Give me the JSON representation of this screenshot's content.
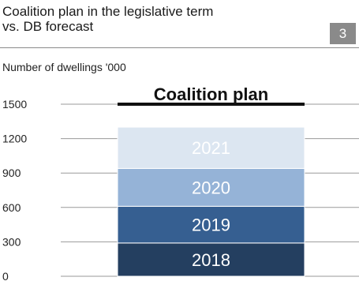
{
  "header": {
    "title_line1": "Coalition plan in the legislative term",
    "title_line2": "vs. DB forecast",
    "number": "3"
  },
  "unit_label": "Number of dwellings '000",
  "chart_data": {
    "type": "bar",
    "stacked": true,
    "categories": [
      "Coalition plan"
    ],
    "series": [
      {
        "name": "2018",
        "values": [
          290
        ],
        "color": "#243f60"
      },
      {
        "name": "2019",
        "values": [
          320
        ],
        "color": "#365f91"
      },
      {
        "name": "2020",
        "values": [
          330
        ],
        "color": "#95b3d7"
      },
      {
        "name": "2021",
        "values": [
          360
        ],
        "color": "#dce6f1"
      }
    ],
    "ylim": [
      0,
      1500
    ],
    "yticks": [
      0,
      300,
      600,
      900,
      1200,
      1500
    ],
    "ylabel": "Number of dwellings '000",
    "xlabel": "",
    "grid": true,
    "colors": {
      "grid": "#9a9a9a",
      "axis_text": "#222222",
      "segment_text": "#ffffff",
      "category_rule": "#111111"
    }
  }
}
